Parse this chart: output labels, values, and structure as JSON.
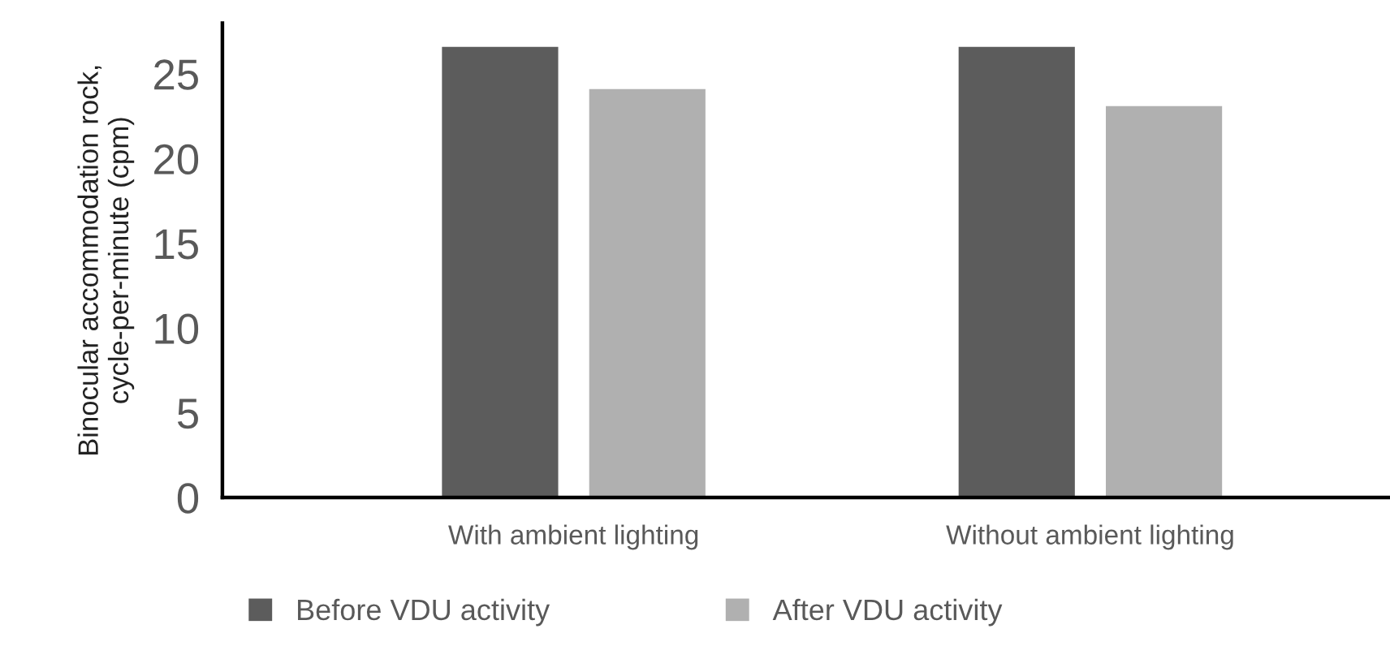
{
  "chart_data": {
    "type": "bar",
    "ylabel": "Binocular accommodation rock,\ncycle-per-minute (cpm)",
    "categories": [
      "With ambient lighting",
      "Without ambient lighting"
    ],
    "series": [
      {
        "name": "Before VDU activity",
        "color": "#5c5c5c",
        "values": [
          26.6,
          26.6
        ]
      },
      {
        "name": "After VDU activity",
        "color": "#b0b0b0",
        "values": [
          24.1,
          23.1
        ]
      }
    ],
    "ylim": [
      0,
      28
    ],
    "yticks": [
      0,
      5,
      10,
      15,
      20,
      25
    ],
    "grid": false,
    "legend": "bottom"
  }
}
